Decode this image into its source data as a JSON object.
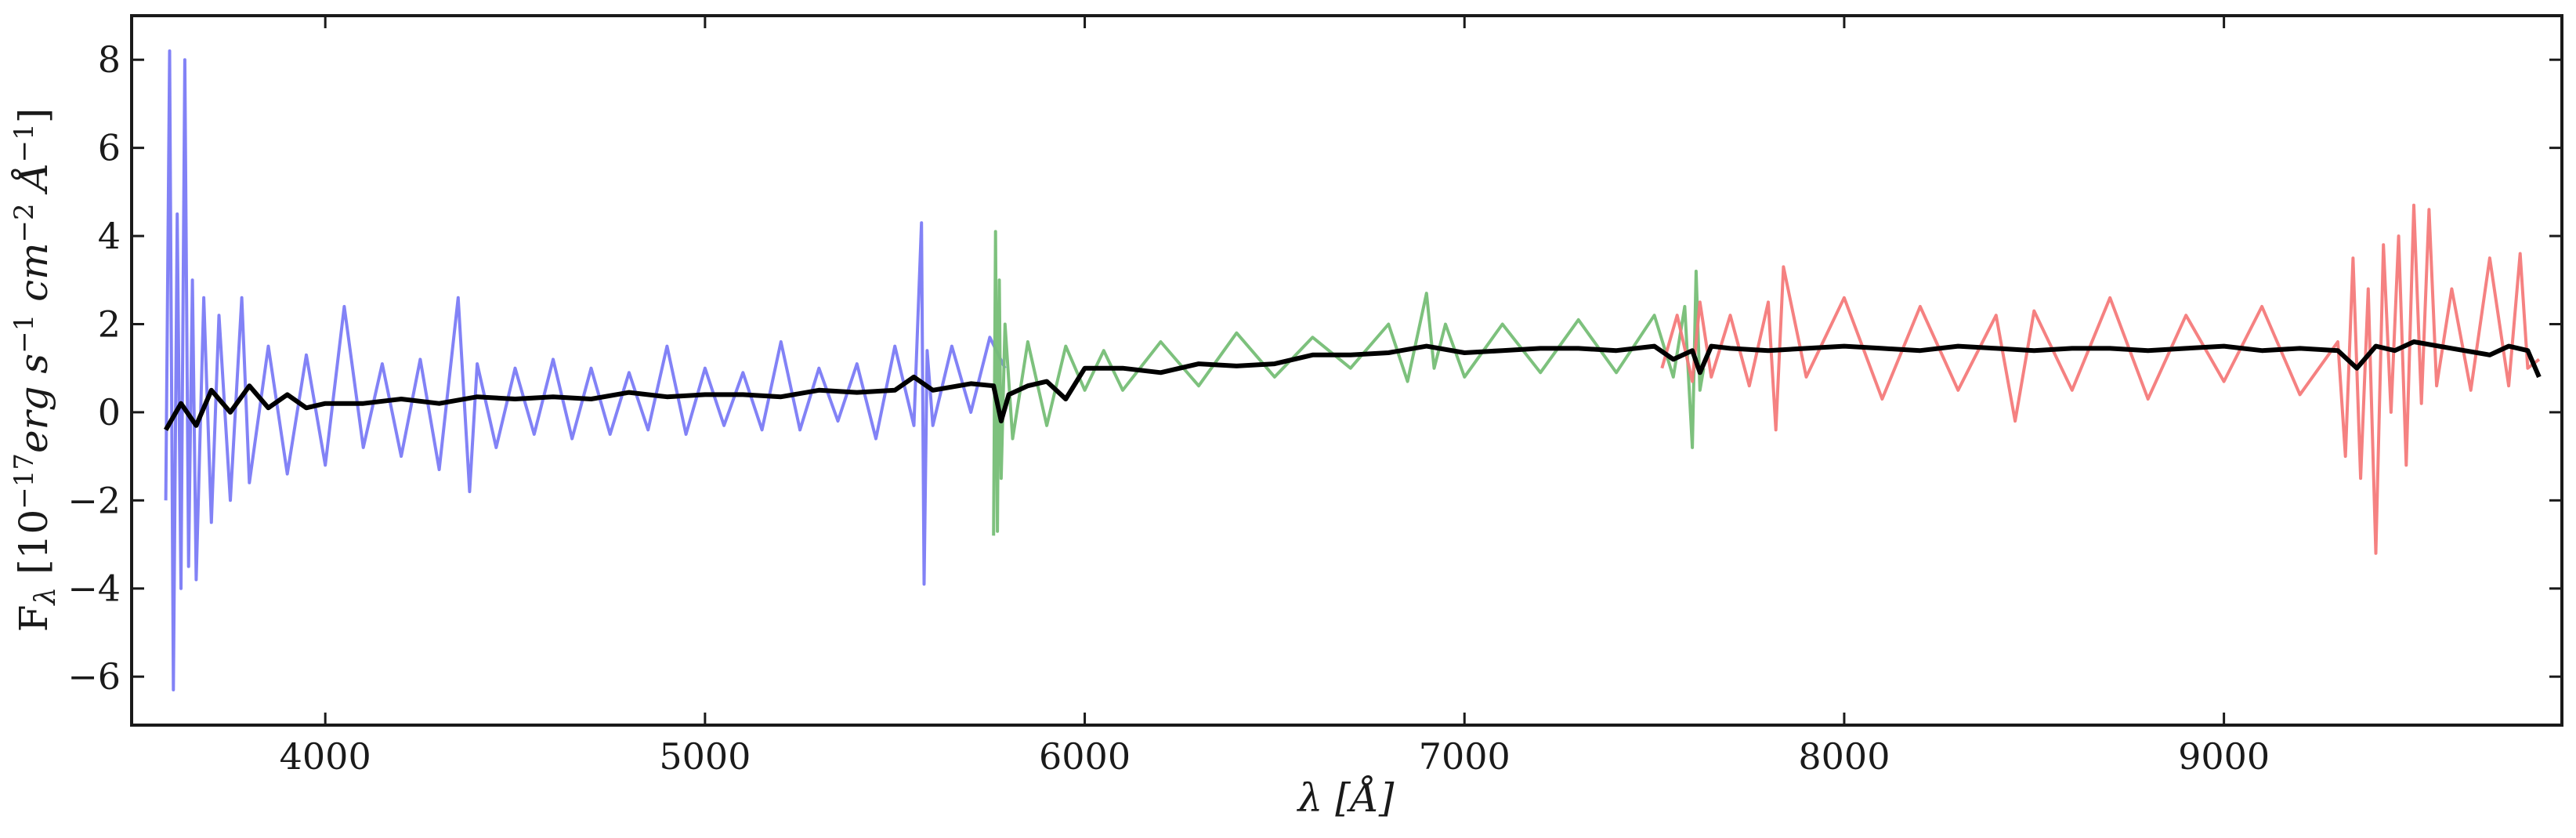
{
  "chart_data": {
    "type": "line",
    "title": "",
    "xlabel": "λ [Å]",
    "ylabel": "F_λ [10^-17 erg s^-1 cm^-2 Å^-1]",
    "xlim": [
      3490,
      9890
    ],
    "ylim": [
      -7.1,
      9.0
    ],
    "grid": false,
    "legend": "none",
    "x_ticks": [
      4000,
      5000,
      6000,
      7000,
      8000,
      9000
    ],
    "y_ticks": [
      -6,
      -4,
      -2,
      0,
      2,
      4,
      6,
      8
    ],
    "x_tick_labels": [
      "4000",
      "5000",
      "6000",
      "7000",
      "8000",
      "9000"
    ],
    "y_tick_labels": [
      "−6",
      "−4",
      "−2",
      "0",
      "2",
      "4",
      "6",
      "8"
    ],
    "series": [
      {
        "color": "#7b7bf5",
        "x": [
          3580,
          3590,
          3600,
          3610,
          3620,
          3630,
          3640,
          3650,
          3660,
          3680,
          3700,
          3720,
          3750,
          3780,
          3800,
          3850,
          3900,
          3950,
          4000,
          4050,
          4100,
          4150,
          4200,
          4250,
          4300,
          4350,
          4380,
          4400,
          4450,
          4500,
          4550,
          4600,
          4650,
          4700,
          4750,
          4800,
          4850,
          4900,
          4950,
          5000,
          5050,
          5100,
          5150,
          5200,
          5250,
          5300,
          5350,
          5400,
          5450,
          5500,
          5550,
          5570,
          5577,
          5585,
          5600,
          5650,
          5700,
          5750,
          5790
        ],
        "y": [
          -2.0,
          8.2,
          -6.3,
          4.5,
          -4.0,
          8.0,
          -3.5,
          3.0,
          -3.8,
          2.6,
          -2.5,
          2.2,
          -2.0,
          2.6,
          -1.6,
          1.5,
          -1.4,
          1.3,
          -1.2,
          2.4,
          -0.8,
          1.1,
          -1.0,
          1.2,
          -1.3,
          2.6,
          -1.8,
          1.1,
          -0.8,
          1.0,
          -0.5,
          1.2,
          -0.6,
          1.0,
          -0.5,
          0.9,
          -0.4,
          1.5,
          -0.5,
          1.0,
          -0.3,
          0.9,
          -0.4,
          1.6,
          -0.4,
          1.0,
          -0.2,
          1.1,
          -0.6,
          1.5,
          -0.3,
          4.3,
          -3.9,
          1.4,
          -0.3,
          1.5,
          0.0,
          1.7,
          1.0
        ]
      },
      {
        "color": "#76be76",
        "x": [
          5760,
          5765,
          5770,
          5775,
          5780,
          5790,
          5810,
          5850,
          5900,
          5950,
          6000,
          6050,
          6100,
          6200,
          6300,
          6400,
          6500,
          6600,
          6700,
          6800,
          6850,
          6900,
          6920,
          6950,
          7000,
          7100,
          7200,
          7300,
          7400,
          7500,
          7550,
          7580,
          7600,
          7610,
          7620,
          7630
        ],
        "y": [
          -2.8,
          4.1,
          -2.7,
          3.0,
          -1.5,
          2.0,
          -0.6,
          1.6,
          -0.3,
          1.5,
          0.5,
          1.4,
          0.5,
          1.6,
          0.6,
          1.8,
          0.8,
          1.7,
          1.0,
          2.0,
          0.7,
          2.7,
          1.0,
          2.0,
          0.8,
          2.0,
          0.9,
          2.1,
          0.9,
          2.2,
          0.8,
          2.4,
          -0.8,
          3.2,
          0.5,
          1.0
        ]
      },
      {
        "color": "#f47a7a",
        "x": [
          7520,
          7560,
          7600,
          7620,
          7650,
          7700,
          7750,
          7800,
          7820,
          7840,
          7900,
          8000,
          8100,
          8200,
          8300,
          8400,
          8450,
          8500,
          8600,
          8700,
          8800,
          8900,
          9000,
          9100,
          9200,
          9300,
          9320,
          9340,
          9360,
          9380,
          9400,
          9420,
          9440,
          9460,
          9480,
          9500,
          9520,
          9540,
          9560,
          9600,
          9650,
          9700,
          9750,
          9780,
          9800,
          9830
        ],
        "y": [
          1.0,
          2.2,
          0.7,
          2.5,
          0.8,
          2.2,
          0.6,
          2.5,
          -0.4,
          3.3,
          0.8,
          2.6,
          0.3,
          2.4,
          0.5,
          2.2,
          -0.2,
          2.3,
          0.5,
          2.6,
          0.3,
          2.2,
          0.7,
          2.4,
          0.4,
          1.6,
          -1.0,
          3.5,
          -1.5,
          2.8,
          -3.2,
          3.8,
          0.0,
          4.0,
          -1.2,
          4.7,
          0.2,
          4.6,
          0.6,
          2.8,
          0.5,
          3.5,
          0.6,
          3.6,
          1.0,
          1.2
        ]
      },
      {
        "color": "#000000",
        "x": [
          3580,
          3620,
          3660,
          3700,
          3750,
          3800,
          3850,
          3900,
          3950,
          4000,
          4100,
          4200,
          4300,
          4400,
          4500,
          4600,
          4700,
          4800,
          4900,
          5000,
          5100,
          5200,
          5300,
          5400,
          5500,
          5550,
          5600,
          5700,
          5760,
          5780,
          5800,
          5850,
          5900,
          5950,
          6000,
          6100,
          6200,
          6300,
          6400,
          6500,
          6600,
          6700,
          6800,
          6900,
          7000,
          7100,
          7200,
          7300,
          7400,
          7500,
          7550,
          7600,
          7620,
          7650,
          7700,
          7800,
          7900,
          8000,
          8100,
          8200,
          8300,
          8400,
          8500,
          8600,
          8700,
          8800,
          8900,
          9000,
          9100,
          9200,
          9300,
          9350,
          9400,
          9450,
          9500,
          9600,
          9700,
          9750,
          9800,
          9830
        ],
        "y": [
          -0.4,
          0.2,
          -0.3,
          0.5,
          0.0,
          0.6,
          0.1,
          0.4,
          0.1,
          0.2,
          0.2,
          0.3,
          0.2,
          0.35,
          0.3,
          0.35,
          0.3,
          0.45,
          0.35,
          0.4,
          0.4,
          0.35,
          0.5,
          0.45,
          0.5,
          0.8,
          0.5,
          0.65,
          0.6,
          -0.2,
          0.4,
          0.6,
          0.7,
          0.3,
          1.0,
          1.0,
          0.9,
          1.1,
          1.05,
          1.1,
          1.3,
          1.3,
          1.35,
          1.5,
          1.35,
          1.4,
          1.45,
          1.45,
          1.4,
          1.5,
          1.2,
          1.4,
          0.9,
          1.5,
          1.45,
          1.4,
          1.45,
          1.5,
          1.45,
          1.4,
          1.5,
          1.45,
          1.4,
          1.45,
          1.45,
          1.4,
          1.45,
          1.5,
          1.4,
          1.45,
          1.4,
          1.0,
          1.5,
          1.4,
          1.6,
          1.45,
          1.3,
          1.5,
          1.4,
          0.8
        ]
      }
    ]
  }
}
